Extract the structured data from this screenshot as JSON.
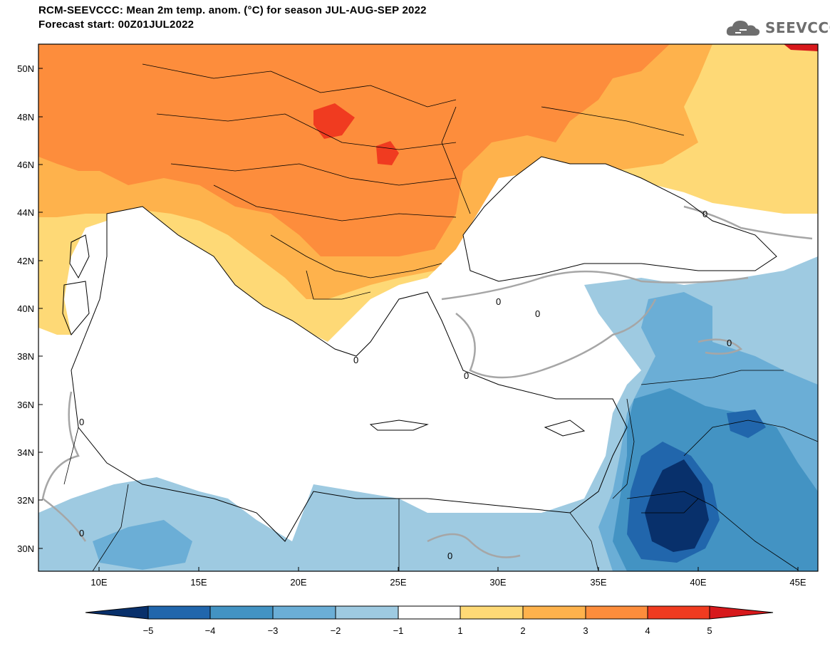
{
  "header": {
    "title_line1": "RCM-SEEVCCC: Mean 2m temp. anom. (°C) for season JUL-AUG-SEP 2022",
    "title_line2": "Forecast start: 00Z01JUL2022"
  },
  "logo": {
    "text": "SEEVCCC",
    "icon": "cloud-logo-icon"
  },
  "map": {
    "lat_labels": [
      "50N",
      "48N",
      "46N",
      "44N",
      "42N",
      "40N",
      "38N",
      "36N",
      "34N",
      "32N",
      "30N"
    ],
    "lon_labels": [
      "10E",
      "15E",
      "20E",
      "25E",
      "30E",
      "35E",
      "40E",
      "45E"
    ],
    "contour_label": "0"
  },
  "colorbar": {
    "ticks": [
      "−5",
      "−4",
      "−3",
      "−2",
      "−1",
      "1",
      "2",
      "3",
      "4",
      "5"
    ],
    "colors": [
      "#08306b",
      "#2166ac",
      "#4393c3",
      "#6baed6",
      "#9ecae1",
      "#ffffff",
      "#fed976",
      "#feb24c",
      "#fd8d3c",
      "#f03b20",
      "#d7191c"
    ]
  }
}
